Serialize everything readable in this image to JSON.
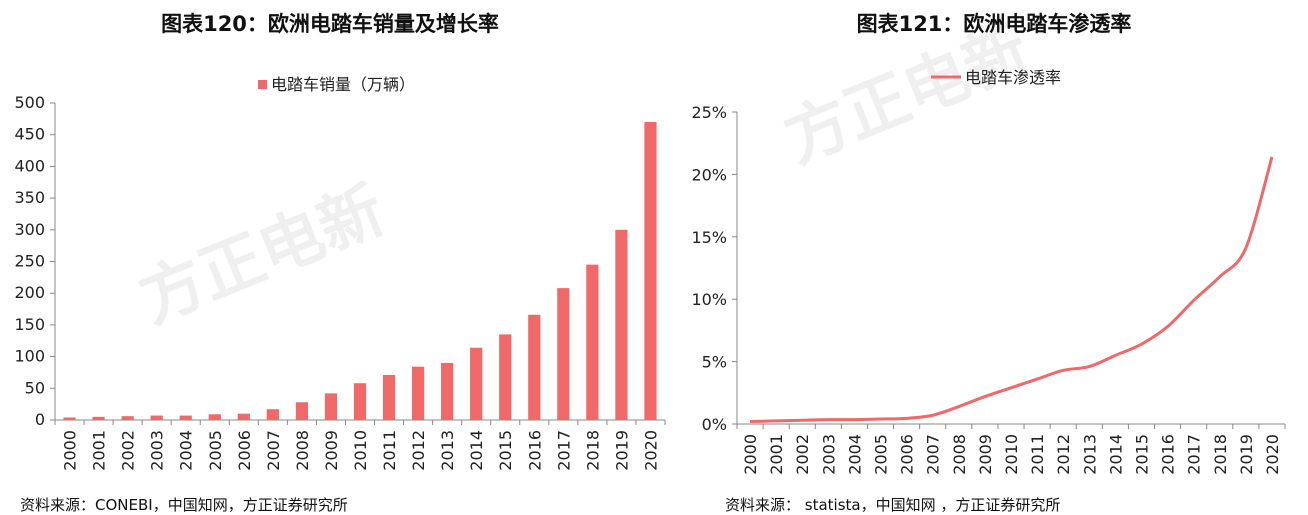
{
  "watermark": "方正电新",
  "chart_data": [
    {
      "type": "bar",
      "title": "图表120：欧洲电踏车销量及增长率",
      "legend": "电踏车销量（万辆）",
      "legend_position": "top",
      "color": "#f06868",
      "ylim": [
        0,
        500
      ],
      "yticks": [
        "500",
        "450",
        "400",
        "350",
        "300",
        "250",
        "200",
        "150",
        "100",
        "50",
        "0"
      ],
      "categories": [
        "2000",
        "2001",
        "2002",
        "2003",
        "2004",
        "2005",
        "2006",
        "2007",
        "2008",
        "2009",
        "2010",
        "2011",
        "2012",
        "2013",
        "2014",
        "2015",
        "2016",
        "2017",
        "2018",
        "2019",
        "2020"
      ],
      "values": [
        4,
        5,
        6,
        7,
        7,
        9,
        10,
        17,
        28,
        42,
        58,
        71,
        84,
        90,
        114,
        135,
        166,
        208,
        245,
        300,
        470
      ],
      "source": "资料来源：CONEBI，中国知网，方正证券研究所"
    },
    {
      "type": "line",
      "title": "图表121：欧洲电踏车渗透率",
      "legend": "电踏车渗透率",
      "legend_position": "top",
      "color": "#f06868",
      "ylim": [
        0,
        25
      ],
      "yticks": [
        "25%",
        "20%",
        "15%",
        "10%",
        "5%",
        "0%"
      ],
      "categories": [
        "2000",
        "2001",
        "2002",
        "2003",
        "2004",
        "2005",
        "2006",
        "2007",
        "2008",
        "2009",
        "2010",
        "2011",
        "2012",
        "2013",
        "2014",
        "2015",
        "2016",
        "2017",
        "2018",
        "2019",
        "2020"
      ],
      "values": [
        0.2,
        0.25,
        0.3,
        0.35,
        0.35,
        0.4,
        0.45,
        0.7,
        1.4,
        2.2,
        2.9,
        3.6,
        4.3,
        4.6,
        5.5,
        6.4,
        7.8,
        9.9,
        11.8,
        14.1,
        21.4
      ],
      "source": "资料来源： statista，中国知网 ，方正证券研究所"
    }
  ]
}
